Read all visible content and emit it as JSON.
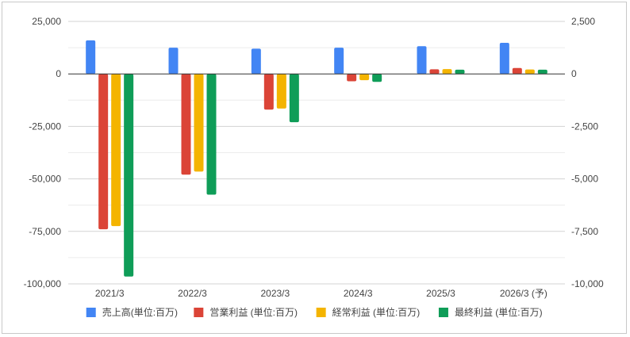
{
  "chart_data": {
    "type": "bar",
    "categories": [
      "2021/3",
      "2022/3",
      "2023/3",
      "2024/3",
      "2025/3",
      "2026/3 (予)"
    ],
    "left_axis": {
      "ylim": [
        -100000,
        25000
      ],
      "ticks": [
        25000,
        0,
        -25000,
        -50000,
        -75000,
        -100000
      ],
      "tick_labels": [
        "25,000",
        "0",
        "-25,000",
        "-50,000",
        "-75,000",
        "-100,000"
      ]
    },
    "right_axis": {
      "ylim": [
        -10000,
        2500
      ],
      "ticks": [
        2500,
        0,
        -2500,
        -5000,
        -7500,
        -10000
      ],
      "tick_labels": [
        "2,500",
        "0",
        "-2,500",
        "-5,000",
        "-7,500",
        "-10,000"
      ]
    },
    "series": [
      {
        "name": "売上高(単位:百万)",
        "color": "#4285F4",
        "axis": "left",
        "values": [
          16000,
          12500,
          12000,
          12500,
          13200,
          14800
        ]
      },
      {
        "name": "営業利益 (単位:百万)",
        "color": "#DB4437",
        "axis": "right",
        "values": [
          -7400,
          -4800,
          -1700,
          -350,
          220,
          280
        ]
      },
      {
        "name": "経常利益 (単位:百万)",
        "color": "#F4B400",
        "axis": "right",
        "values": [
          -7250,
          -4650,
          -1650,
          -300,
          230,
          210
        ]
      },
      {
        "name": "最終利益 (単位:百万)",
        "color": "#0F9D58",
        "axis": "right",
        "values": [
          -9650,
          -5750,
          -2300,
          -380,
          200,
          200
        ]
      }
    ],
    "grid": true,
    "legend": "bottom"
  }
}
